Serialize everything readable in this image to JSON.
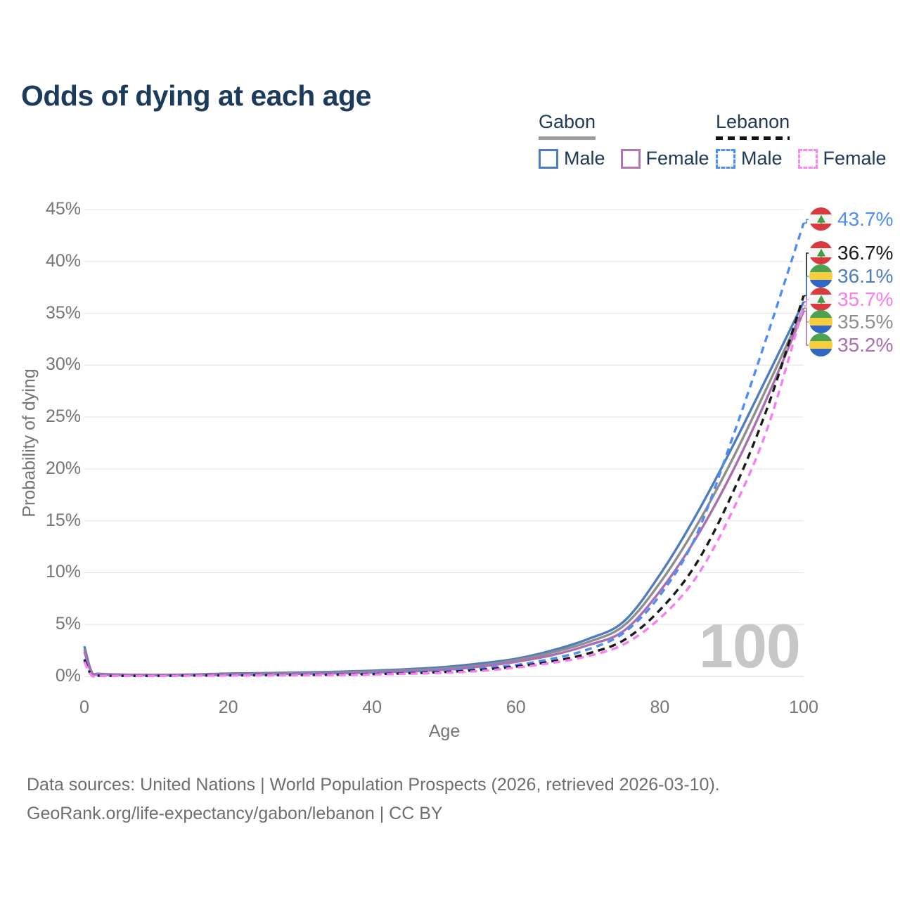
{
  "title": "Odds of dying at each age",
  "legend": {
    "groups": [
      {
        "name": "Gabon",
        "line_style": "solid",
        "underline_color": "#9c9c9c",
        "items": [
          {
            "label": "Male",
            "color": "#4e7cbe",
            "dashed": false
          },
          {
            "label": "Female",
            "color": "#b278b2",
            "dashed": false
          }
        ]
      },
      {
        "name": "Lebanon",
        "line_style": "dashed",
        "underline_color": "#141414",
        "items": [
          {
            "label": "Male",
            "color": "#4d8df5",
            "dashed": true
          },
          {
            "label": "Female",
            "color": "#fb87f0",
            "dashed": true
          }
        ]
      }
    ]
  },
  "chart_data": {
    "type": "line",
    "title": "Odds of dying at each age",
    "xlabel": "Age",
    "ylabel": "Probability of dying",
    "xlim": [
      0,
      100
    ],
    "ylim": [
      0,
      45
    ],
    "x_ticks": [
      0,
      20,
      40,
      60,
      80,
      100
    ],
    "y_ticks": [
      0,
      5,
      10,
      15,
      20,
      25,
      30,
      35,
      40,
      45
    ],
    "y_tick_suffix": "%",
    "grid": "horizontal",
    "legend_position": "top-right",
    "watermark": "100",
    "x": [
      0,
      1,
      2,
      5,
      10,
      15,
      20,
      25,
      30,
      35,
      40,
      45,
      50,
      55,
      60,
      65,
      70,
      75,
      80,
      85,
      90,
      95,
      100
    ],
    "series": [
      {
        "name": "Gabon Male",
        "country": "Gabon",
        "sex": "Male",
        "color": "#4e7cbe",
        "dashed": false,
        "flag": "gabon",
        "end_label": "36.1%",
        "values": [
          2.9,
          0.45,
          0.25,
          0.18,
          0.15,
          0.18,
          0.28,
          0.32,
          0.38,
          0.45,
          0.55,
          0.7,
          0.9,
          1.25,
          1.7,
          2.5,
          3.6,
          5.3,
          9.8,
          15.5,
          22.0,
          29.0,
          36.1
        ]
      },
      {
        "name": "Gabon",
        "country": "Gabon",
        "sex": "Both",
        "color": "#8e8e8e",
        "dashed": false,
        "flag": "gabon",
        "end_label": "35.5%",
        "values": [
          2.6,
          0.4,
          0.22,
          0.16,
          0.13,
          0.15,
          0.22,
          0.26,
          0.31,
          0.37,
          0.46,
          0.58,
          0.76,
          1.05,
          1.55,
          2.3,
          3.3,
          4.9,
          9.0,
          14.4,
          20.8,
          28.0,
          35.5
        ]
      },
      {
        "name": "Gabon Female",
        "country": "Gabon",
        "sex": "Female",
        "color": "#aa6fb2",
        "dashed": false,
        "flag": "gabon",
        "end_label": "35.2%",
        "values": [
          2.4,
          0.36,
          0.2,
          0.14,
          0.12,
          0.13,
          0.17,
          0.2,
          0.25,
          0.3,
          0.38,
          0.48,
          0.64,
          0.95,
          1.4,
          2.05,
          3.0,
          4.4,
          8.2,
          13.3,
          19.6,
          27.0,
          35.2
        ]
      },
      {
        "name": "Lebanon Male",
        "country": "Lebanon",
        "sex": "Male",
        "color": "#4d8df5",
        "dashed": true,
        "flag": "lebanon",
        "end_label": "43.7%",
        "values": [
          1.7,
          0.12,
          0.08,
          0.06,
          0.06,
          0.09,
          0.12,
          0.15,
          0.18,
          0.22,
          0.28,
          0.38,
          0.53,
          0.78,
          1.1,
          1.7,
          2.6,
          4.2,
          7.8,
          13.5,
          22.8,
          33.0,
          43.7
        ]
      },
      {
        "name": "Lebanon",
        "country": "Lebanon",
        "sex": "Both",
        "color": "#1a1a1a",
        "dashed": true,
        "flag": "lebanon",
        "end_label": "36.7%",
        "values": [
          1.6,
          0.11,
          0.07,
          0.055,
          0.055,
          0.08,
          0.1,
          0.12,
          0.14,
          0.17,
          0.22,
          0.3,
          0.42,
          0.63,
          0.95,
          1.45,
          2.2,
          3.5,
          6.4,
          10.8,
          17.5,
          26.0,
          36.7
        ]
      },
      {
        "name": "Lebanon Female",
        "country": "Lebanon",
        "sex": "Female",
        "color": "#f97df2",
        "dashed": true,
        "flag": "lebanon",
        "end_label": "35.7%",
        "values": [
          1.4,
          0.1,
          0.06,
          0.05,
          0.05,
          0.07,
          0.08,
          0.1,
          0.12,
          0.14,
          0.18,
          0.25,
          0.35,
          0.52,
          0.85,
          1.3,
          1.95,
          3.1,
          5.6,
          9.5,
          15.8,
          24.0,
          35.7
        ]
      }
    ]
  },
  "footer": {
    "line1": "Data sources: United Nations | World Population Prospects (2026, retrieved 2026-03-10).",
    "line2": "GeoRank.org/life-expectancy/gabon/lebanon | CC BY"
  }
}
